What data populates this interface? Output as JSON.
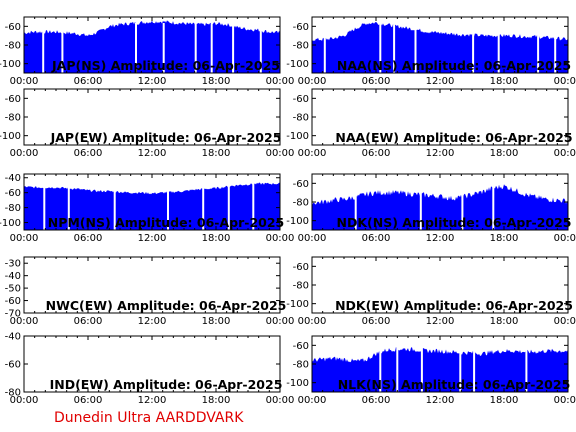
{
  "footer": "Dunedin Ultra AARDDVARK",
  "colors": {
    "signal": "#0000ff",
    "footer": "#e00000",
    "axis": "#000000"
  },
  "chart_data": [
    {
      "type": "area",
      "title": "JAP(NS) Amplitude: 06-Apr-2025",
      "x_ticks": [
        "00:00",
        "06:00",
        "12:00",
        "18:00",
        "00:00"
      ],
      "xlim": [
        0,
        24
      ],
      "ylim": [
        -110,
        -50
      ],
      "y_ticks": [
        -60,
        -80,
        -100
      ],
      "has_data": true,
      "series": [
        {
          "x": [
            0,
            1,
            2,
            3,
            4,
            5,
            6,
            7,
            8,
            9,
            10,
            11,
            12,
            13,
            14,
            15,
            16,
            17,
            18,
            19,
            20,
            21,
            22,
            23,
            24
          ],
          "y": [
            -67,
            -66,
            -66,
            -66,
            -67,
            -68,
            -70,
            -66,
            -60,
            -58,
            -57,
            -56,
            -55,
            -55,
            -56,
            -57,
            -58,
            -58,
            -57,
            -58,
            -61,
            -63,
            -64,
            -66,
            -67
          ],
          "noise": 2
        }
      ],
      "dropouts": [
        1.8,
        3.6,
        10.5,
        13.1,
        16.1,
        17.6,
        19.6,
        22.2
      ]
    },
    {
      "type": "area",
      "title": "NAA(NS) Amplitude: 06-Apr-2025",
      "x_ticks": [
        "00:00",
        "06:00",
        "12:00",
        "18:00",
        "00:00"
      ],
      "xlim": [
        0,
        24
      ],
      "ylim": [
        -110,
        -50
      ],
      "y_ticks": [
        -60,
        -80,
        -100
      ],
      "has_data": true,
      "series": [
        {
          "x": [
            0,
            1,
            2,
            3,
            4,
            5,
            6,
            7,
            8,
            9,
            10,
            11,
            12,
            13,
            14,
            15,
            16,
            17,
            18,
            19,
            20,
            21,
            22,
            23,
            24
          ],
          "y": [
            -74,
            -74,
            -73,
            -70,
            -63,
            -57,
            -56,
            -58,
            -60,
            -62,
            -64,
            -66,
            -67,
            -68,
            -69,
            -69,
            -70,
            -70,
            -70,
            -70,
            -71,
            -71,
            -72,
            -73,
            -74
          ],
          "noise": 2
        }
      ],
      "dropouts": [
        1.2,
        6.4,
        7.7,
        9.7,
        15.1,
        17.5,
        21.2,
        22.8
      ]
    },
    {
      "type": "area",
      "title": "JAP(EW) Amplitude: 06-Apr-2025",
      "x_ticks": [
        "00:00",
        "06:00",
        "12:00",
        "18:00",
        "00:00"
      ],
      "xlim": [
        0,
        24
      ],
      "ylim": [
        -110,
        -50
      ],
      "y_ticks": [
        -60,
        -80,
        -100
      ],
      "has_data": false
    },
    {
      "type": "area",
      "title": "NAA(EW) Amplitude: 06-Apr-2025",
      "x_ticks": [
        "00:00",
        "06:00",
        "12:00",
        "18:00",
        "00:00"
      ],
      "xlim": [
        0,
        24
      ],
      "ylim": [
        -110,
        -50
      ],
      "y_ticks": [
        -60,
        -80,
        -100
      ],
      "has_data": false
    },
    {
      "type": "area",
      "title": "NPM(NS) Amplitude: 06-Apr-2025",
      "x_ticks": [
        "00:00",
        "06:00",
        "12:00",
        "18:00",
        "00:00"
      ],
      "xlim": [
        0,
        24
      ],
      "ylim": [
        -110,
        -35
      ],
      "y_ticks": [
        -40,
        -60,
        -80,
        -100
      ],
      "has_data": true,
      "series": [
        {
          "x": [
            0,
            1,
            2,
            3,
            4,
            5,
            6,
            7,
            8,
            9,
            10,
            11,
            12,
            13,
            14,
            15,
            16,
            17,
            18,
            19,
            20,
            21,
            22,
            23,
            24
          ],
          "y": [
            -52,
            -53,
            -53,
            -53,
            -54,
            -55,
            -57,
            -58,
            -58,
            -59,
            -60,
            -60,
            -61,
            -60,
            -59,
            -58,
            -56,
            -55,
            -54,
            -52,
            -50,
            -49,
            -48,
            -48,
            -48
          ],
          "noise": 1.5
        }
      ],
      "dropouts": [
        1.9,
        4.2,
        8.5,
        13.5,
        16.8,
        19.2,
        21.5
      ]
    },
    {
      "type": "area",
      "title": "NDK(NS) Amplitude: 06-Apr-2025",
      "x_ticks": [
        "00:00",
        "06:00",
        "12:00",
        "18:00",
        "00:00"
      ],
      "xlim": [
        0,
        24
      ],
      "ylim": [
        -110,
        -50
      ],
      "y_ticks": [
        -60,
        -80,
        -100
      ],
      "has_data": true,
      "series": [
        {
          "x": [
            0,
            1,
            2,
            3,
            4,
            5,
            6,
            7,
            8,
            9,
            10,
            11,
            12,
            13,
            14,
            15,
            16,
            17,
            18,
            19,
            20,
            21,
            22,
            23,
            24
          ],
          "y": [
            -81,
            -80,
            -78,
            -77,
            -75,
            -72,
            -70,
            -70,
            -70,
            -71,
            -72,
            -73,
            -74,
            -76,
            -75,
            -72,
            -69,
            -65,
            -63,
            -67,
            -72,
            -75,
            -77,
            -78,
            -79
          ],
          "noise": 3
        }
      ],
      "dropouts": [
        4.1,
        10.2,
        14.1,
        17.0
      ]
    },
    {
      "type": "area",
      "title": "NWC(EW) Amplitude: 06-Apr-2025",
      "x_ticks": [
        "00:00",
        "06:00",
        "12:00",
        "18:00",
        "00:00"
      ],
      "xlim": [
        0,
        24
      ],
      "ylim": [
        -70,
        -25
      ],
      "y_ticks": [
        -30,
        -40,
        -50,
        -60,
        -70
      ],
      "has_data": false
    },
    {
      "type": "area",
      "title": "NDK(EW) Amplitude: 06-Apr-2025",
      "x_ticks": [
        "00:00",
        "06:00",
        "12:00",
        "18:00",
        "00:00"
      ],
      "xlim": [
        0,
        24
      ],
      "ylim": [
        -110,
        -50
      ],
      "y_ticks": [
        -60,
        -80,
        -100
      ],
      "has_data": false
    },
    {
      "type": "area",
      "title": "IND(EW) Amplitude: 06-Apr-2025",
      "x_ticks": [
        "00:00",
        "06:00",
        "12:00",
        "18:00",
        "00:00"
      ],
      "xlim": [
        0,
        24
      ],
      "ylim": [
        -80,
        -40
      ],
      "y_ticks": [
        -40,
        -60,
        -80
      ],
      "has_data": false
    },
    {
      "type": "area",
      "title": "NLK(NS) Amplitude: 06-Apr-2025",
      "x_ticks": [
        "00:00",
        "06:00",
        "12:00",
        "18:00",
        "00:00"
      ],
      "xlim": [
        0,
        24
      ],
      "ylim": [
        -110,
        -50
      ],
      "y_ticks": [
        -60,
        -80,
        -100
      ],
      "has_data": true,
      "series": [
        {
          "x": [
            0,
            1,
            2,
            3,
            4,
            5,
            6,
            7,
            8,
            9,
            10,
            11,
            12,
            13,
            14,
            15,
            16,
            17,
            18,
            19,
            20,
            21,
            22,
            23,
            24
          ],
          "y": [
            -76,
            -75,
            -74,
            -75,
            -77,
            -76,
            -69,
            -65,
            -64,
            -64,
            -65,
            -66,
            -66,
            -67,
            -68,
            -68,
            -69,
            -67,
            -66,
            -66,
            -67,
            -67,
            -66,
            -66,
            -66
          ],
          "noise": 2.5
        }
      ],
      "dropouts": [
        6.4,
        8.0,
        10.3,
        13.9,
        15.2,
        20.1
      ]
    }
  ]
}
